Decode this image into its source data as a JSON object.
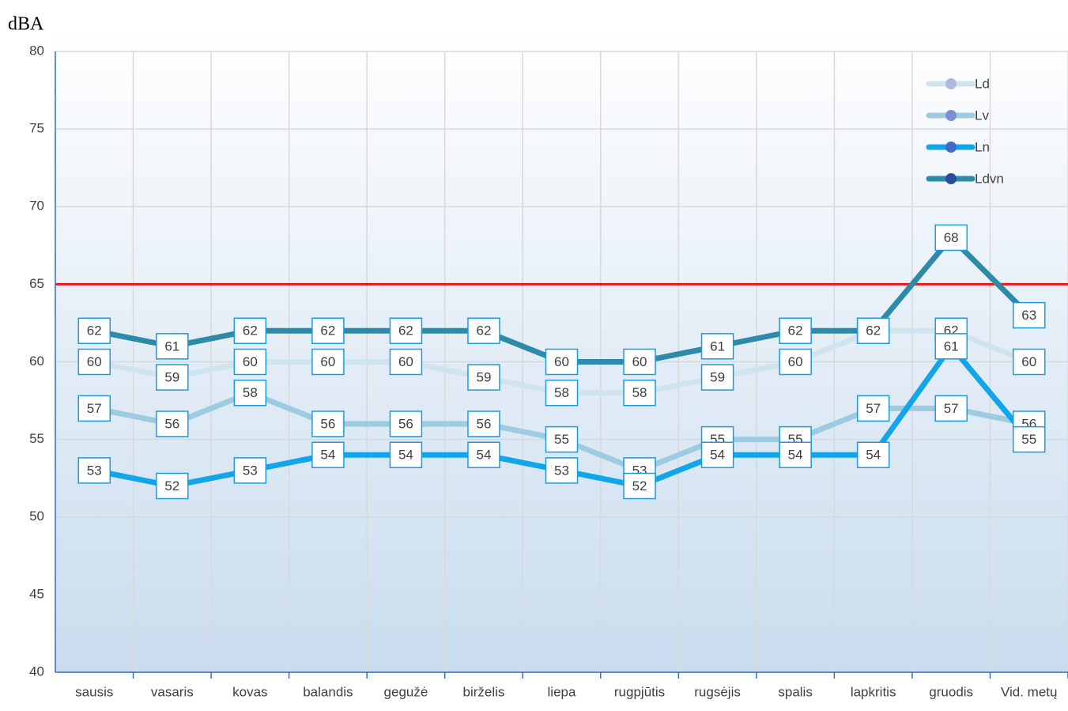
{
  "chart_data": {
    "type": "line",
    "y_axis_label": "dBA",
    "categories": [
      "sausis",
      "vasaris",
      "kovas",
      "balandis",
      "gegužė",
      "birželis",
      "liepa",
      "rugpjūtis",
      "rugsėjis",
      "spalis",
      "lapkritis",
      "gruodis",
      "Vid. metų"
    ],
    "series": [
      {
        "name": "Ld",
        "color": "#cfe4ef",
        "marker_color": "#b3b8e2",
        "values": [
          60,
          59,
          60,
          60,
          60,
          59,
          58,
          58,
          59,
          60,
          62,
          62,
          60
        ]
      },
      {
        "name": "Lv",
        "color": "#9dcce0",
        "marker_color": "#7d8fd8",
        "values": [
          57,
          56,
          58,
          56,
          56,
          56,
          55,
          53,
          55,
          55,
          57,
          57,
          56
        ]
      },
      {
        "name": "Ln",
        "color": "#12a5ea",
        "marker_color": "#3c6cc6",
        "values": [
          53,
          52,
          53,
          54,
          54,
          54,
          53,
          52,
          54,
          54,
          54,
          61,
          55
        ]
      },
      {
        "name": "Ldvn",
        "color": "#2d8aa8",
        "marker_color": "#2b4d9e",
        "values": [
          62,
          61,
          62,
          62,
          62,
          62,
          60,
          60,
          61,
          62,
          62,
          68,
          63
        ]
      }
    ],
    "threshold": 65,
    "threshold_color": "#e8191e",
    "ylim": [
      40,
      80
    ],
    "yticks": [
      40,
      45,
      50,
      55,
      60,
      65,
      70,
      75,
      80
    ],
    "grid": true,
    "legend": "upper right"
  }
}
